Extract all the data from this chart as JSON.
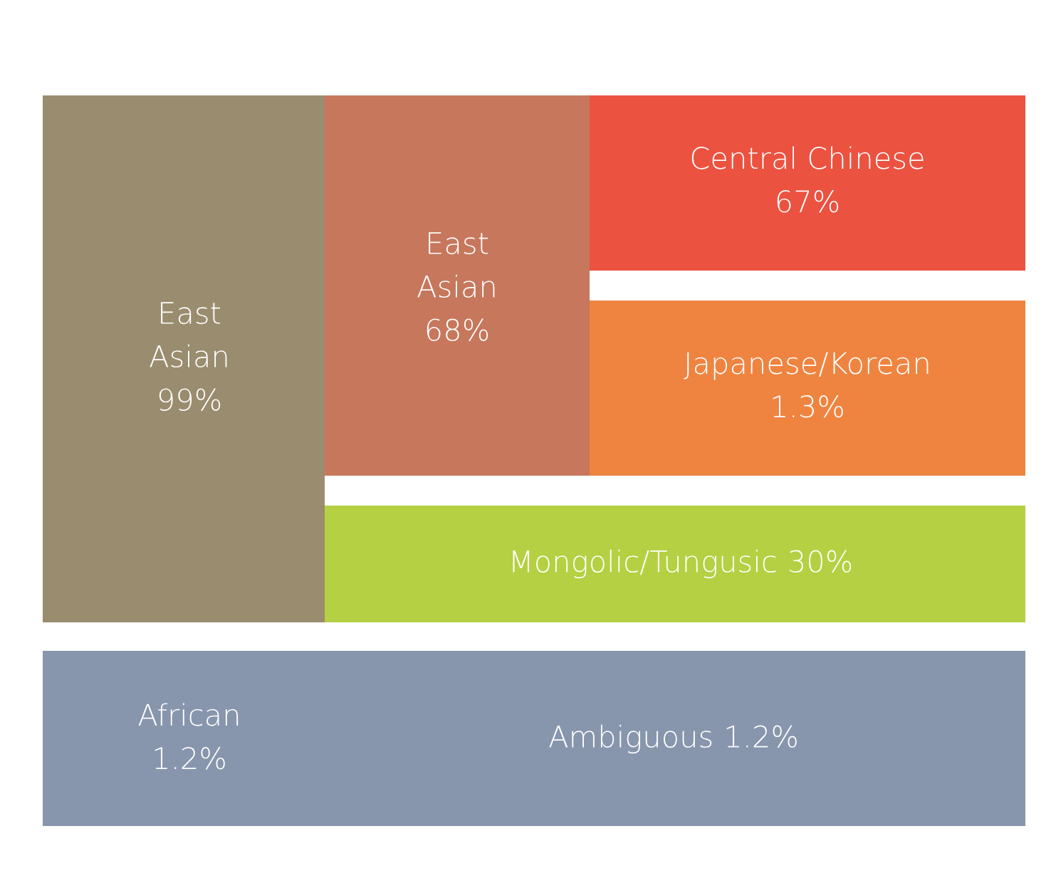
{
  "chart_data": {
    "type": "other",
    "categories": [
      "East Asian",
      "East Asian",
      "Central Chinese",
      "Japanese/Korean",
      "Mongolic/Tungusic",
      "African",
      "Ambiguous"
    ],
    "values": [
      99,
      68,
      67,
      1.3,
      30,
      1.2,
      1.2
    ],
    "value_labels": [
      "99%",
      "68%",
      "67%",
      "1.3%",
      "30%",
      "1.2%",
      "1.2%"
    ],
    "colors": [
      "#9a8c6e",
      "#c6775c",
      "#ec5240",
      "#ef8440",
      "#b5d042",
      "#8796ac",
      "#8796ac"
    ]
  }
}
